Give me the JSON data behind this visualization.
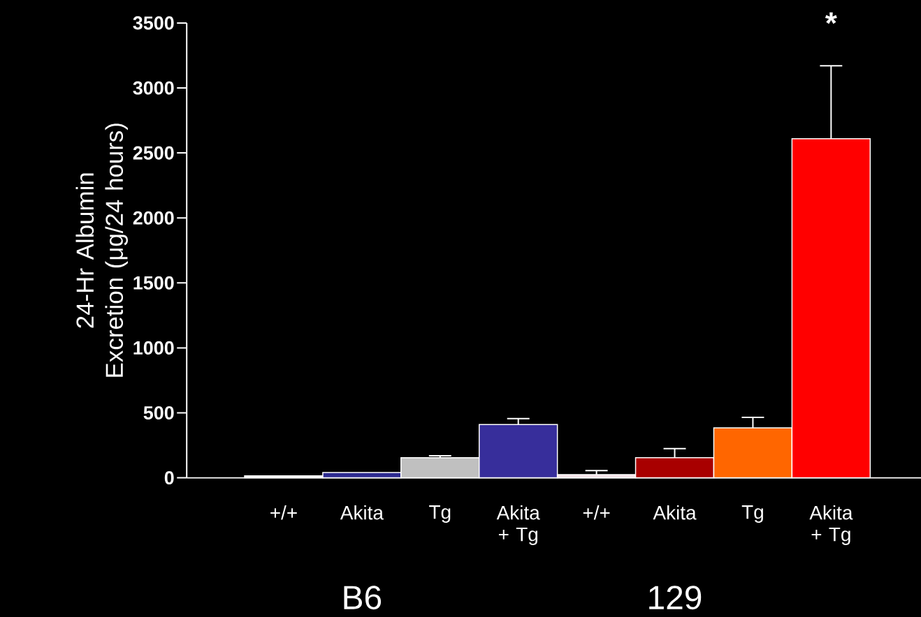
{
  "chart_data": {
    "type": "bar",
    "ylabel": "24-Hr Albumin Excretion (μg/24 hours)",
    "categories": [
      "+/+",
      "Akita",
      "Tg",
      "Akita + Tg",
      "+/+",
      "Akita",
      "Tg",
      "Akita + Tg"
    ],
    "values": [
      15,
      40,
      155,
      410,
      25,
      155,
      385,
      2610
    ],
    "colors": [
      "#ffffff",
      "#2c2a90",
      "#c0c0c0",
      "#372e9b",
      "#f6e4ea",
      "#a80000",
      "#ff6600",
      "#ff0000"
    ],
    "errors": [
      null,
      null,
      [
        155,
        170
      ],
      [
        410,
        455
      ],
      [
        25,
        55
      ],
      [
        155,
        225
      ],
      [
        385,
        465
      ],
      [
        2610,
        3170
      ]
    ],
    "ylim": [
      0,
      3500
    ],
    "yticks": [
      0,
      500,
      1000,
      1500,
      2000,
      2500,
      3000,
      3500
    ],
    "annotations": [
      "*",
      "B6",
      "129"
    ]
  }
}
